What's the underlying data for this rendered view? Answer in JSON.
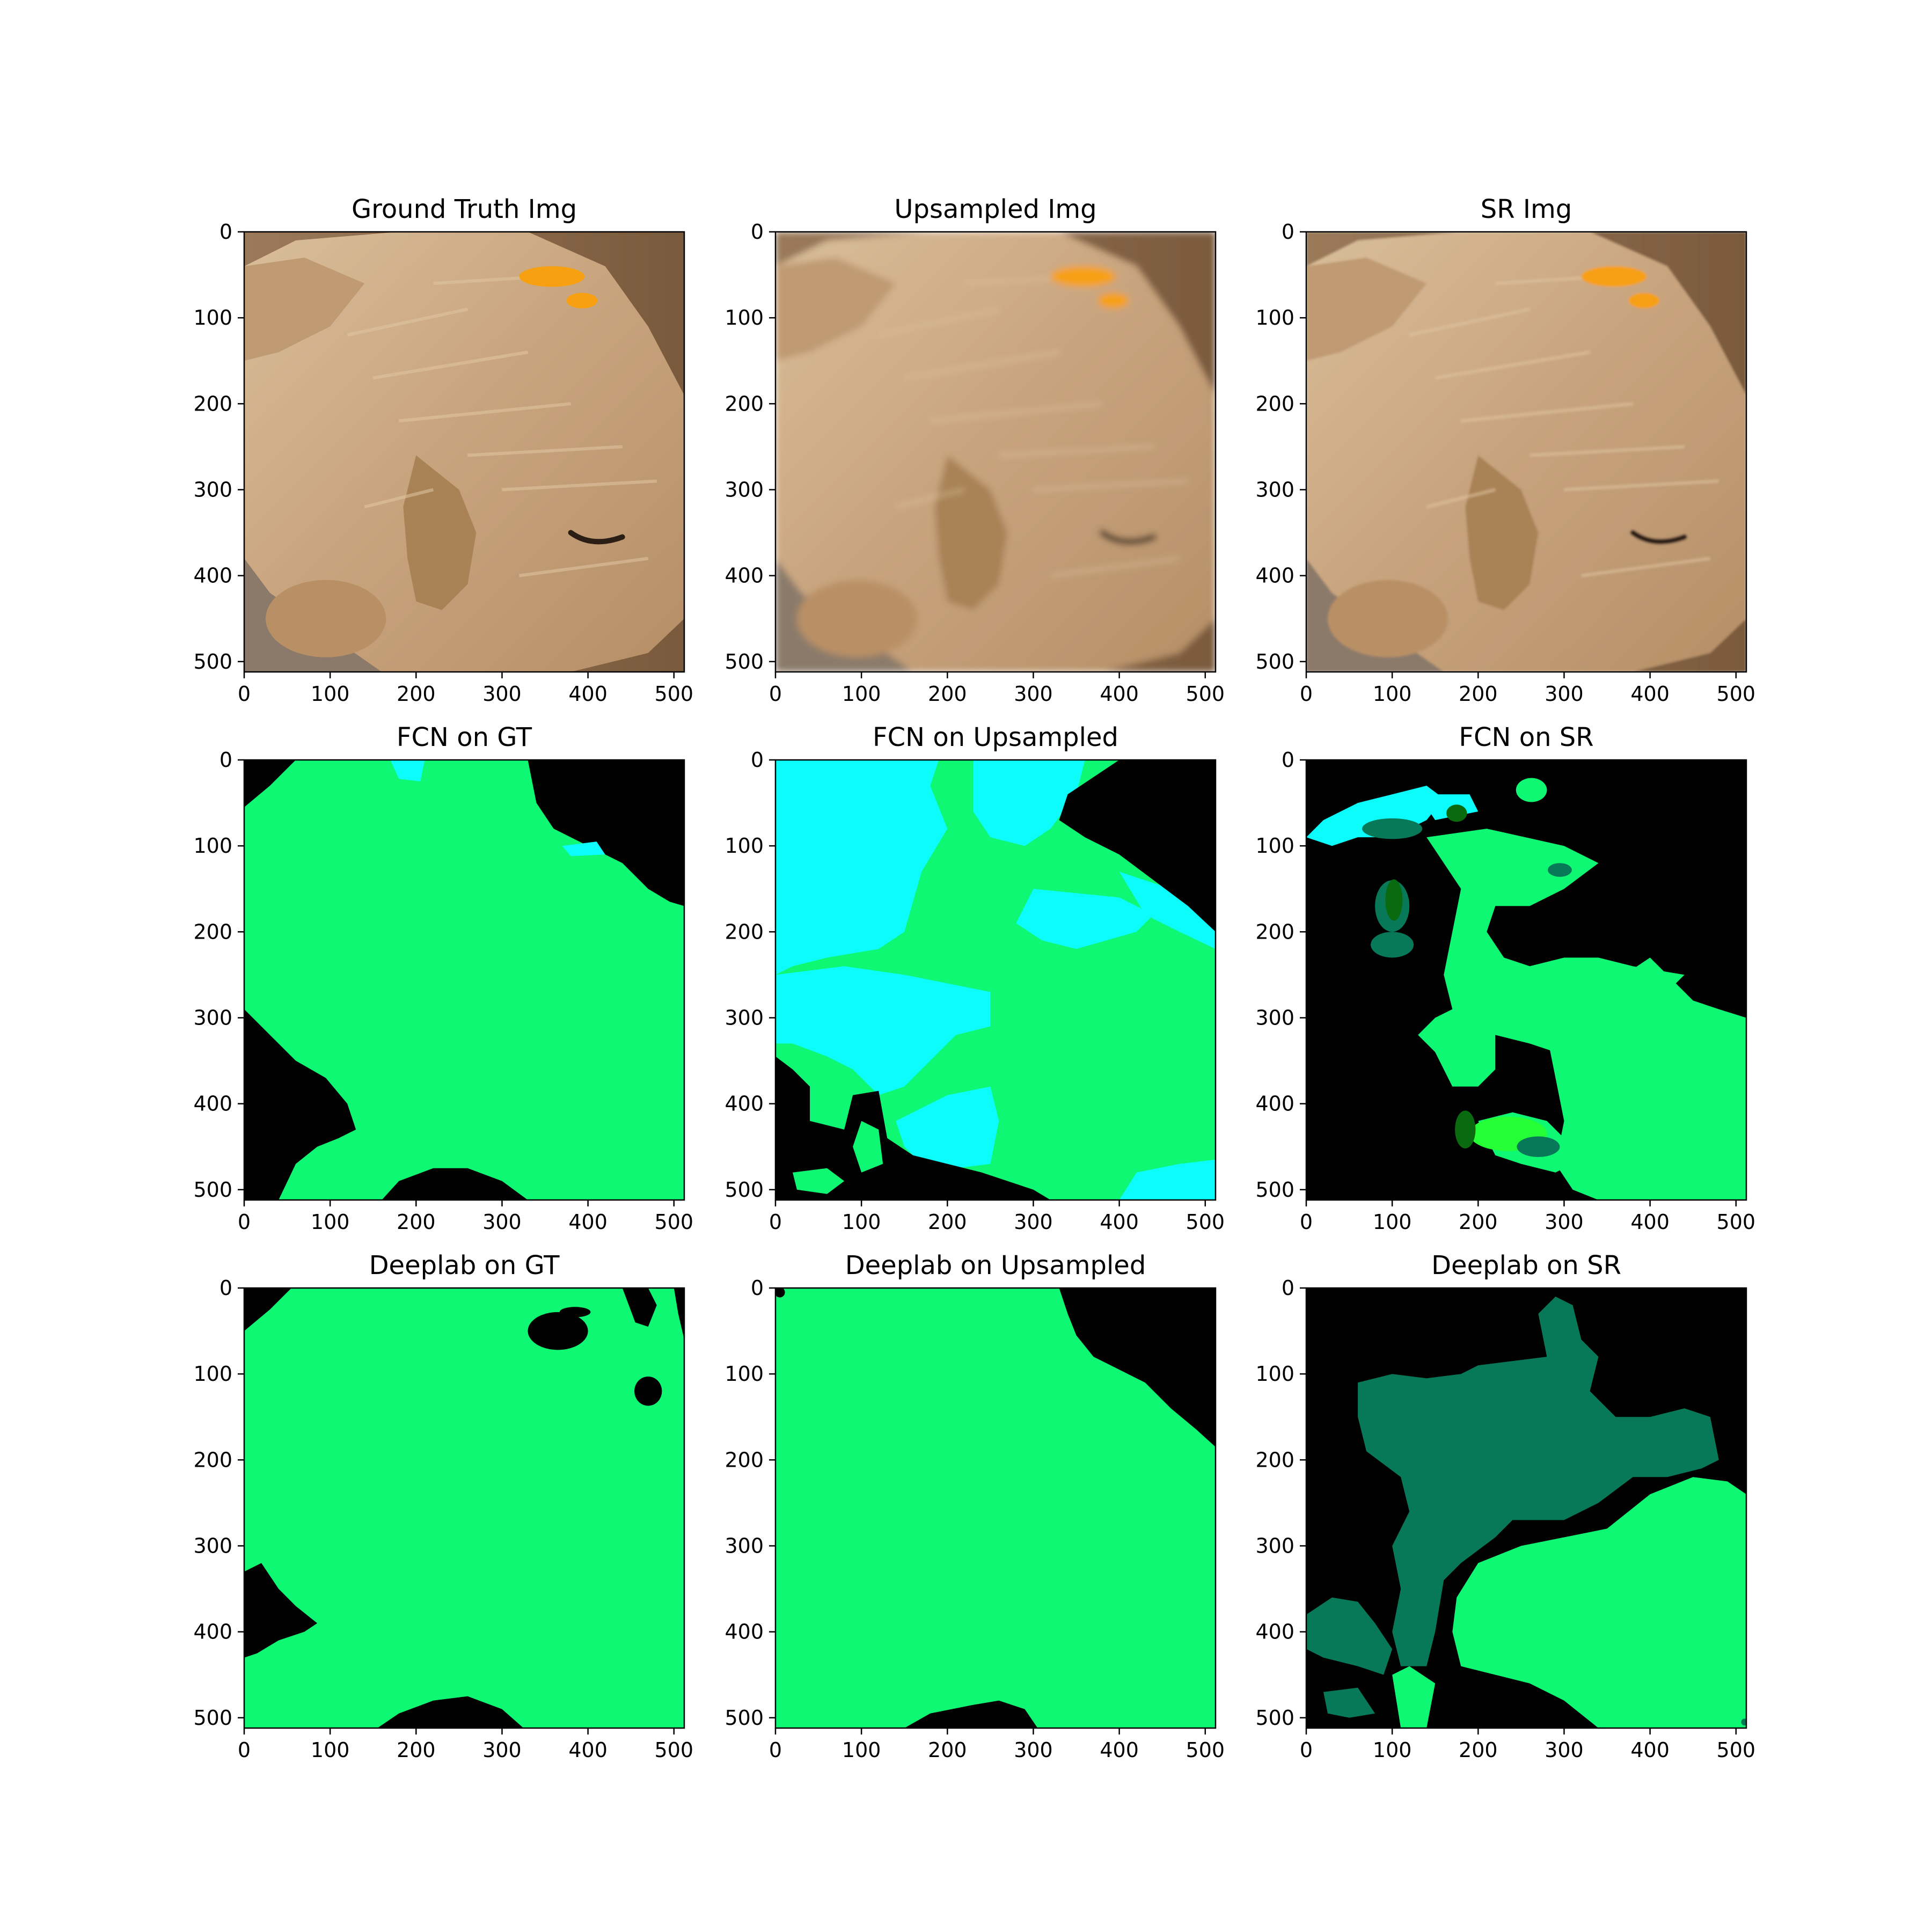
{
  "figure": {
    "panels": [
      {
        "title": "Ground Truth Img",
        "kind": "photo",
        "variant": "gt"
      },
      {
        "title": "Upsampled Img",
        "kind": "photo",
        "variant": "up"
      },
      {
        "title": "SR Img",
        "kind": "photo",
        "variant": "sr"
      },
      {
        "title": "FCN on GT",
        "kind": "segmentation",
        "variant": "fcn-gt"
      },
      {
        "title": "FCN on Upsampled",
        "kind": "segmentation",
        "variant": "fcn-up"
      },
      {
        "title": "FCN on SR",
        "kind": "segmentation",
        "variant": "fcn-sr"
      },
      {
        "title": "Deeplab on GT",
        "kind": "segmentation",
        "variant": "dl-gt"
      },
      {
        "title": "Deeplab on Upsampled",
        "kind": "segmentation",
        "variant": "dl-up"
      },
      {
        "title": "Deeplab on SR",
        "kind": "segmentation",
        "variant": "dl-sr"
      }
    ],
    "x_ticks": [
      "0",
      "100",
      "200",
      "300",
      "400",
      "500"
    ],
    "y_ticks": [
      "0",
      "100",
      "200",
      "300",
      "400",
      "500"
    ],
    "colors": {
      "segment_green": "#0ff873",
      "segment_cyan": "#0cfbfb",
      "segment_teal": "#077858",
      "segment_dark_green": "#0a6a10",
      "segment_lime": "#26ff35",
      "background": "#000000",
      "fur": "#c9a57f",
      "ear_ribbon": "#f7a012"
    }
  }
}
